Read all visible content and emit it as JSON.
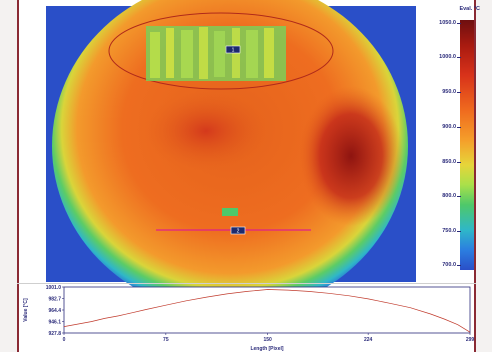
{
  "thermal_view": {
    "scale_title": "Eval. °C",
    "scale_ticks": [
      "1050.0",
      "1000.0",
      "950.0",
      "900.0",
      "850.0",
      "800.0",
      "750.0",
      "700.0"
    ],
    "scale_range": [
      700.0,
      1050.0
    ],
    "markers": [
      {
        "label": "1"
      },
      {
        "label": "2"
      }
    ],
    "colors": {
      "hot": "#6e0f10",
      "warm": "#ef6a1e",
      "cool": "#2b7ee0",
      "background": "#2a4fc8",
      "line": "#e0208a"
    }
  },
  "profile_chart": {
    "ylabel": "Value [°C]",
    "xlabel": "Length [Pixel]",
    "y_ticks": [
      "1001.0",
      "982.7",
      "964.4",
      "946.1",
      "927.8"
    ],
    "x_ticks": [
      "0",
      "75",
      "150",
      "224",
      "299"
    ]
  },
  "chart_data": {
    "type": "line",
    "xlabel": "Length [Pixel]",
    "ylabel": "Value [°C]",
    "xlim": [
      0,
      299
    ],
    "ylim": [
      927.8,
      1001.0
    ],
    "series": [
      {
        "color": "#c0392b",
        "x": [
          0,
          10,
          20,
          30,
          40,
          50,
          60,
          75,
          90,
          105,
          120,
          135,
          150,
          165,
          180,
          195,
          210,
          224,
          240,
          255,
          270,
          280,
          290,
          299
        ],
        "y": [
          938,
          942,
          946,
          951,
          955,
          960,
          965,
          972,
          979,
          985,
          990,
          994,
          997,
          996,
          994,
          991,
          987,
          982,
          975,
          968,
          958,
          950,
          941,
          929
        ]
      }
    ]
  }
}
